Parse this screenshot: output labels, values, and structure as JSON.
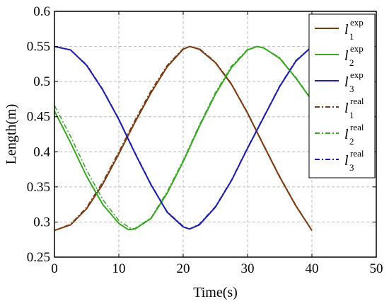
{
  "chart_data": {
    "type": "line",
    "xlabel": "Time(s)",
    "ylabel": "Length(m)",
    "xlim": [
      0,
      50
    ],
    "ylim": [
      0.25,
      0.6
    ],
    "xticks": [
      "0",
      "10",
      "20",
      "30",
      "40",
      "50"
    ],
    "yticks": [
      "0.25",
      "0.3",
      "0.35",
      "0.4",
      "0.45",
      "0.5",
      "0.55",
      "0.6"
    ],
    "grid": true,
    "legend_position": "top-right",
    "series": [
      {
        "base": "l",
        "sub": "1",
        "sup": "exp",
        "color": "#7a3b12",
        "style": "solid",
        "x": [
          0,
          2.5,
          5,
          7.5,
          10,
          12.5,
          15,
          17.5,
          20,
          21,
          22.5,
          25,
          27.5,
          30,
          32.5,
          35,
          37.5,
          40
        ],
        "y": [
          0.288,
          0.296,
          0.319,
          0.354,
          0.397,
          0.442,
          0.484,
          0.521,
          0.546,
          0.55,
          0.546,
          0.527,
          0.496,
          0.455,
          0.409,
          0.364,
          0.323,
          0.288
        ]
      },
      {
        "base": "l",
        "sub": "2",
        "sup": "exp",
        "color": "#3aa626",
        "style": "solid",
        "x": [
          0,
          2.5,
          5,
          7.5,
          10,
          11.5,
          12.5,
          15,
          17.5,
          20,
          22.5,
          25,
          27.5,
          30,
          31.5,
          32.5,
          35,
          37.5,
          40
        ],
        "y": [
          0.458,
          0.413,
          0.365,
          0.325,
          0.298,
          0.289,
          0.29,
          0.305,
          0.341,
          0.386,
          0.436,
          0.482,
          0.52,
          0.545,
          0.55,
          0.548,
          0.533,
          0.505,
          0.473
        ]
      },
      {
        "base": "l",
        "sub": "3",
        "sup": "exp",
        "color": "#1f1fa6",
        "style": "solid",
        "x": [
          0,
          2.5,
          5,
          7.5,
          10,
          12.5,
          15,
          17.5,
          20,
          21,
          22.5,
          25,
          27.5,
          30,
          32.5,
          35,
          37.5,
          40
        ],
        "y": [
          0.55,
          0.545,
          0.523,
          0.488,
          0.446,
          0.398,
          0.353,
          0.314,
          0.293,
          0.29,
          0.296,
          0.321,
          0.359,
          0.405,
          0.449,
          0.493,
          0.529,
          0.55
        ]
      },
      {
        "base": "l",
        "sub": "1",
        "sup": "real",
        "color": "#7a3b12",
        "style": "dashdot",
        "x": [
          0,
          2.5,
          5,
          7.5,
          10,
          12.5,
          15,
          17.5,
          20,
          21,
          22.5,
          25,
          27.5,
          30,
          32.5,
          35,
          37.5,
          40
        ],
        "y": [
          0.288,
          0.297,
          0.321,
          0.357,
          0.4,
          0.445,
          0.487,
          0.523,
          0.547,
          0.55,
          0.547,
          0.528,
          0.497,
          0.456,
          0.41,
          0.365,
          0.324,
          0.288
        ]
      },
      {
        "base": "l",
        "sub": "2",
        "sup": "real",
        "color": "#3aa626",
        "style": "dashdot",
        "x": [
          0,
          2.5,
          5,
          7.5,
          10,
          12,
          12.5,
          15,
          17.5,
          20,
          22.5,
          25,
          27.5,
          30,
          31.5,
          32.5,
          35,
          37.5,
          40
        ],
        "y": [
          0.466,
          0.422,
          0.374,
          0.332,
          0.302,
          0.29,
          0.291,
          0.306,
          0.343,
          0.388,
          0.438,
          0.484,
          0.522,
          0.546,
          0.55,
          0.548,
          0.534,
          0.506,
          0.474
        ]
      },
      {
        "base": "l",
        "sub": "3",
        "sup": "real",
        "color": "#1f1fa6",
        "style": "dashdot",
        "x": [
          0,
          2.5,
          5,
          7.5,
          10,
          12.5,
          15,
          17.5,
          20,
          21,
          22.5,
          25,
          27.5,
          30,
          32.5,
          35,
          37.5,
          40
        ],
        "y": [
          0.55,
          0.545,
          0.524,
          0.489,
          0.447,
          0.399,
          0.354,
          0.315,
          0.294,
          0.29,
          0.297,
          0.322,
          0.36,
          0.406,
          0.45,
          0.494,
          0.53,
          0.55
        ]
      }
    ]
  }
}
